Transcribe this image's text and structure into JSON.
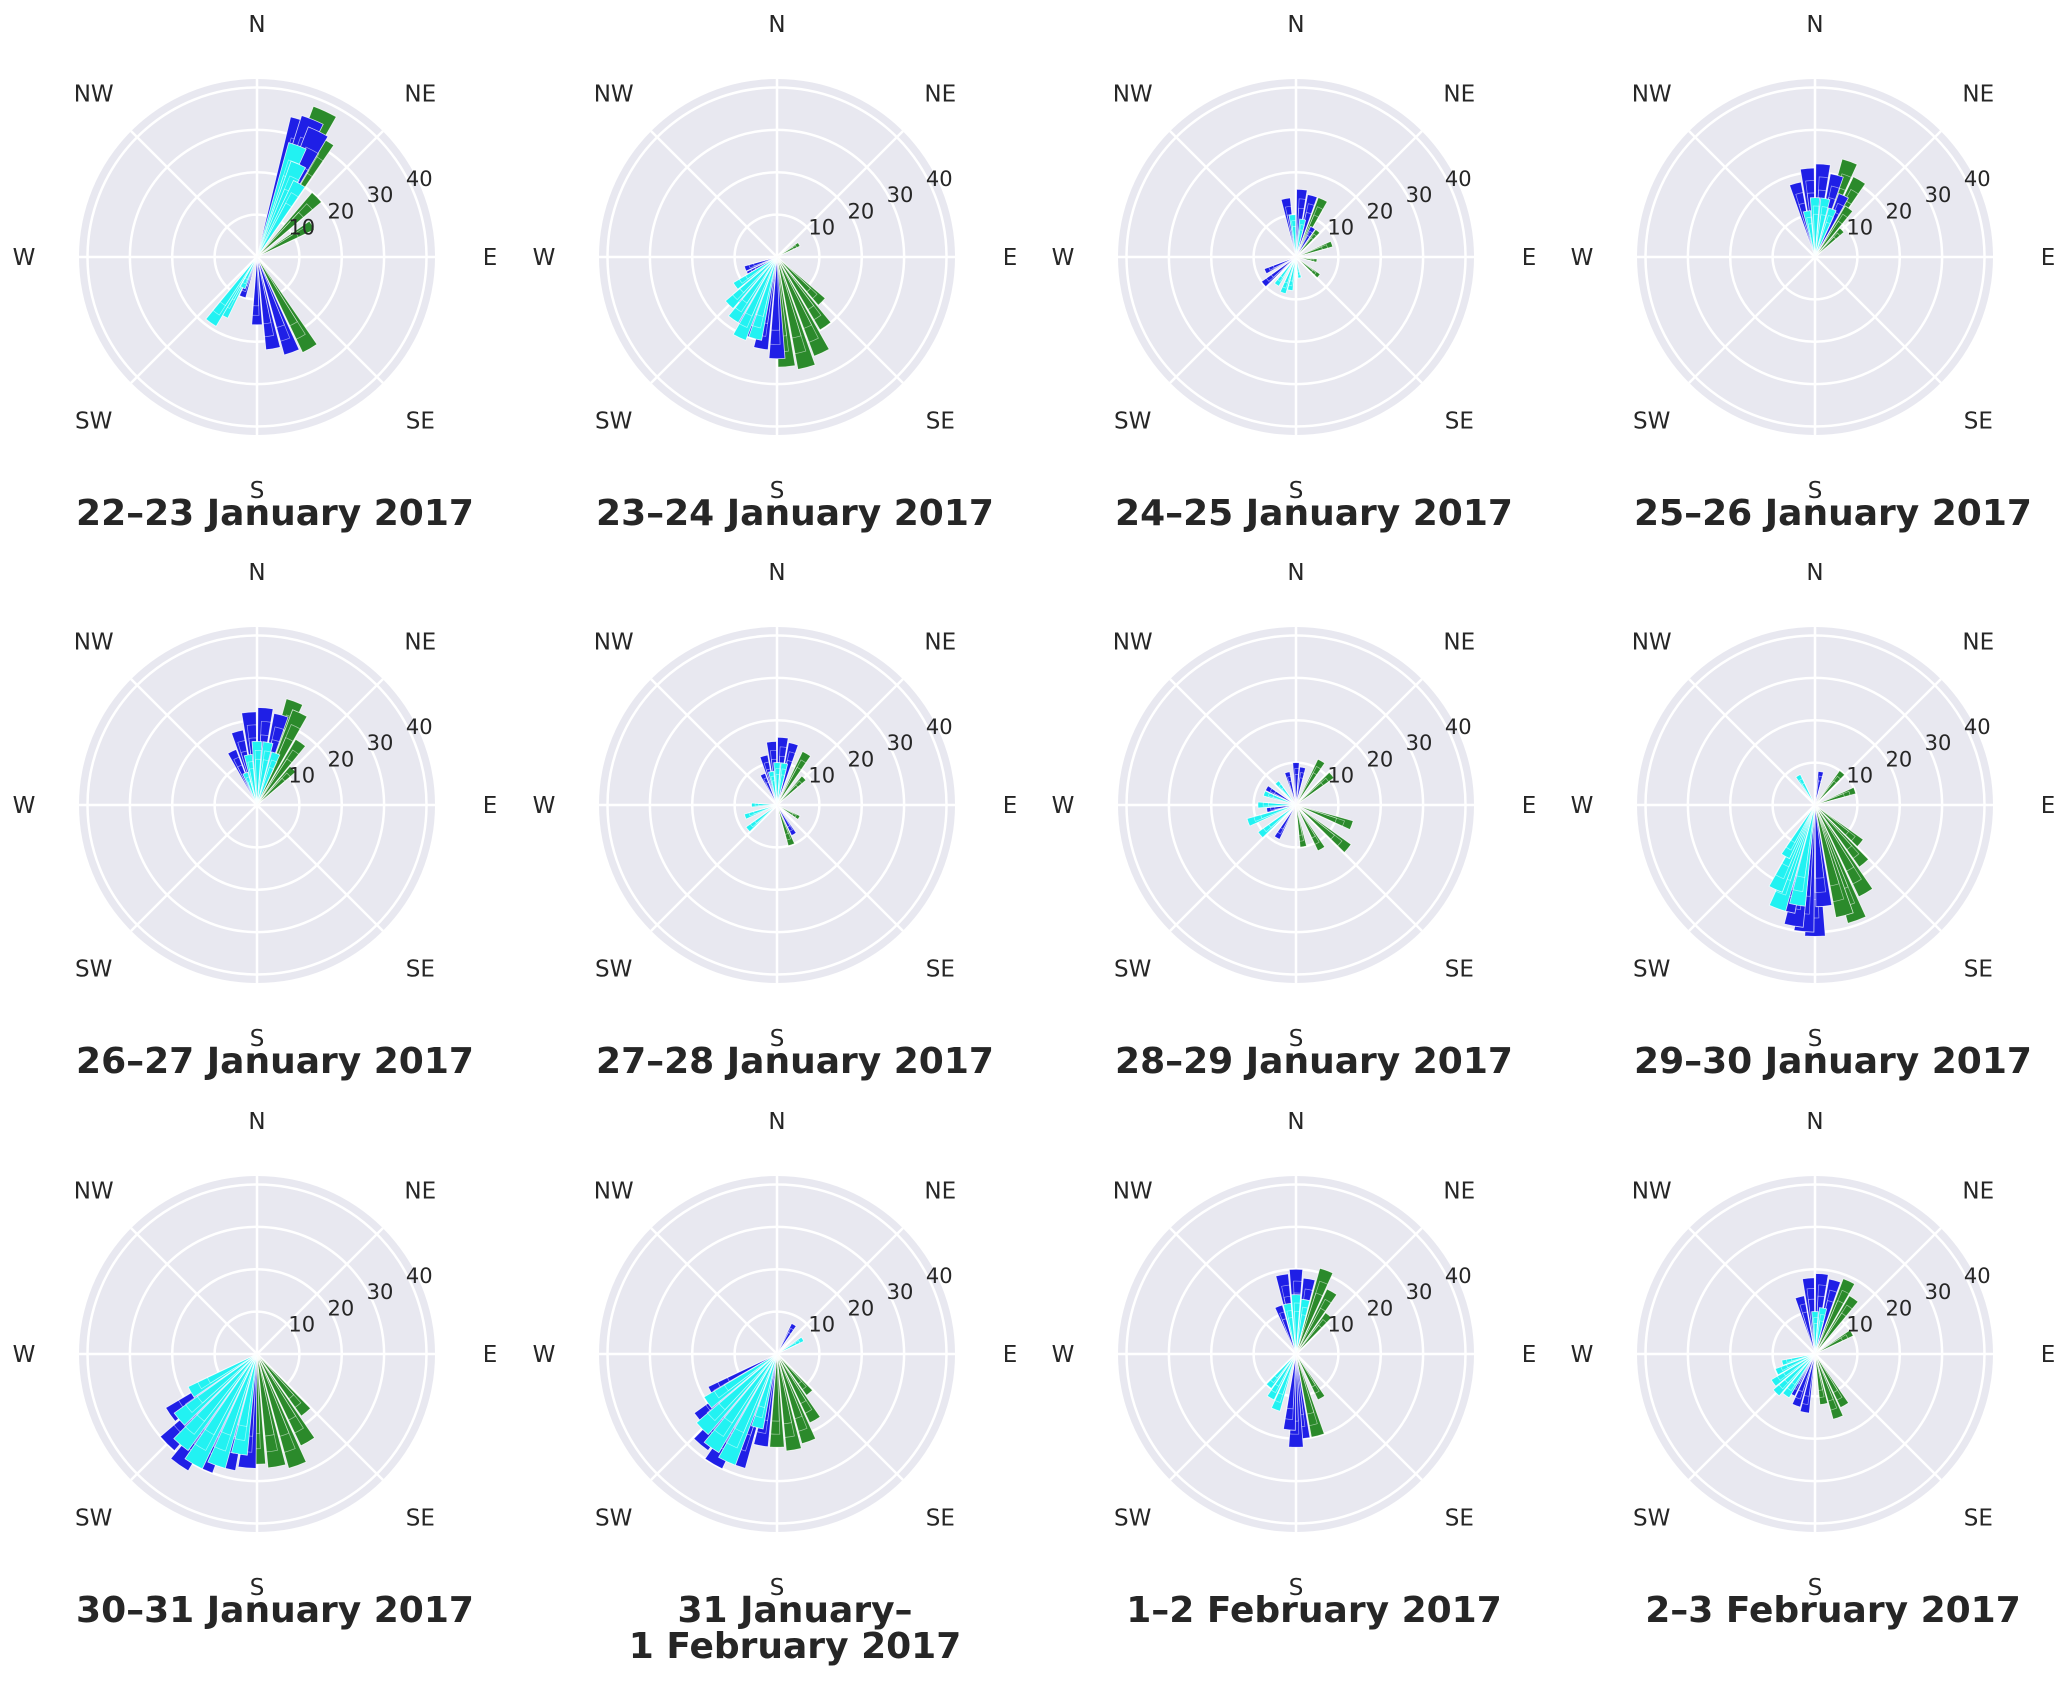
{
  "colors": {
    "background": "#ffffff",
    "panel_bg": "#e8e8f0",
    "grid": "#ffffff",
    "text": "#262626",
    "series_blue": "#1f1fe6",
    "series_cyan": "#22f2f2",
    "series_green": "#2b8a2b"
  },
  "chart_data": {
    "type": "polar-bar",
    "layout": {
      "rows": 3,
      "cols": 4
    },
    "directions": [
      "N",
      "NE",
      "E",
      "SE",
      "S",
      "SW",
      "W",
      "NW"
    ],
    "radial_ticks": [
      10,
      20,
      30,
      40
    ],
    "rlim": [
      0,
      42
    ],
    "grid": true,
    "series_colors": [
      "#1f1fe6",
      "#22f2f2",
      "#2b8a2b"
    ],
    "panels": [
      {
        "title": [
          "22–23 January 2017"
        ],
        "bars": {
          "blue": [
            [
              18,
              34
            ],
            [
              22,
              35
            ],
            [
              26,
              33
            ],
            [
              160,
              24
            ],
            [
              170,
              22
            ],
            [
              180,
              16
            ],
            [
              200,
              10
            ],
            [
              210,
              12
            ]
          ],
          "cyan": [
            [
              20,
              28
            ],
            [
              24,
              24
            ],
            [
              30,
              20
            ],
            [
              210,
              16
            ],
            [
              215,
              19
            ],
            [
              205,
              8
            ]
          ],
          "green": [
            [
              25,
              38
            ],
            [
              30,
              32
            ],
            [
              45,
              20
            ],
            [
              60,
              15
            ],
            [
              150,
              25
            ],
            [
              160,
              20
            ]
          ]
        }
      },
      {
        "title": [
          "23–24 January 2017"
        ],
        "bars": {
          "blue": [
            [
              180,
              24
            ],
            [
              190,
              22
            ],
            [
              200,
              20
            ],
            [
              210,
              18
            ],
            [
              220,
              14
            ],
            [
              230,
              10
            ],
            [
              240,
              8
            ],
            [
              250,
              8
            ]
          ],
          "cyan": [
            [
              195,
              20
            ],
            [
              205,
              21
            ],
            [
              215,
              18
            ],
            [
              225,
              16
            ],
            [
              235,
              12
            ]
          ],
          "green": [
            [
              155,
              25
            ],
            [
              165,
              27
            ],
            [
              175,
              26
            ],
            [
              145,
              20
            ],
            [
              135,
              15
            ],
            [
              60,
              6
            ]
          ]
        }
      },
      {
        "title": [
          "24–25 January 2017"
        ],
        "bars": {
          "blue": [
            [
              5,
              16
            ],
            [
              15,
              15
            ],
            [
              -10,
              14
            ],
            [
              30,
              8
            ],
            [
              230,
              10
            ],
            [
              245,
              8
            ],
            [
              200,
              6
            ]
          ],
          "cyan": [
            [
              -5,
              10
            ],
            [
              10,
              9
            ],
            [
              190,
              8
            ],
            [
              200,
              9
            ],
            [
              215,
              8
            ],
            [
              170,
              5
            ]
          ],
          "green": [
            [
              25,
              15
            ],
            [
              40,
              8
            ],
            [
              70,
              9
            ],
            [
              130,
              7
            ],
            [
              100,
              5
            ]
          ]
        }
      },
      {
        "title": [
          "25–26 January 2017"
        ],
        "bars": {
          "blue": [
            [
              -5,
              21
            ],
            [
              5,
              22
            ],
            [
              15,
              20
            ],
            [
              25,
              16
            ],
            [
              -15,
              18
            ]
          ],
          "cyan": [
            [
              0,
              14
            ],
            [
              10,
              14
            ],
            [
              20,
              12
            ],
            [
              -10,
              11
            ]
          ],
          "green": [
            [
              20,
              24
            ],
            [
              30,
              21
            ],
            [
              35,
              14
            ],
            [
              45,
              9
            ]
          ]
        }
      },
      {
        "title": [
          "26–27 January 2017"
        ],
        "bars": {
          "blue": [
            [
              -5,
              22
            ],
            [
              5,
              23
            ],
            [
              15,
              22
            ],
            [
              -15,
              18
            ],
            [
              -25,
              14
            ]
          ],
          "cyan": [
            [
              0,
              15
            ],
            [
              10,
              15
            ],
            [
              20,
              13
            ],
            [
              -10,
              12
            ],
            [
              -20,
              8
            ]
          ],
          "green": [
            [
              20,
              26
            ],
            [
              25,
              24
            ],
            [
              35,
              18
            ],
            [
              45,
              12
            ]
          ]
        }
      },
      {
        "title": [
          "27–28 January 2017"
        ],
        "bars": {
          "blue": [
            [
              -5,
              15
            ],
            [
              5,
              16
            ],
            [
              15,
              15
            ],
            [
              -15,
              12
            ],
            [
              -25,
              8
            ],
            [
              150,
              8
            ]
          ],
          "cyan": [
            [
              0,
              10
            ],
            [
              10,
              10
            ],
            [
              -10,
              8
            ],
            [
              230,
              9
            ],
            [
              250,
              8
            ],
            [
              270,
              6
            ]
          ],
          "green": [
            [
              30,
              14
            ],
            [
              45,
              9
            ],
            [
              160,
              10
            ],
            [
              120,
              6
            ]
          ]
        }
      },
      {
        "title": [
          "28–29 January 2017"
        ],
        "bars": {
          "blue": [
            [
              0,
              10
            ],
            [
              10,
              9
            ],
            [
              -15,
              8
            ],
            [
              210,
              9
            ],
            [
              230,
              8
            ],
            [
              260,
              7
            ],
            [
              300,
              8
            ]
          ],
          "cyan": [
            [
              230,
              11
            ],
            [
              250,
              12
            ],
            [
              270,
              9
            ],
            [
              290,
              8
            ],
            [
              320,
              7
            ]
          ],
          "green": [
            [
              30,
              12
            ],
            [
              50,
              11
            ],
            [
              110,
              14
            ],
            [
              130,
              16
            ],
            [
              150,
              12
            ],
            [
              170,
              10
            ]
          ]
        }
      },
      {
        "title": [
          "29–30 January 2017"
        ],
        "bars": {
          "blue": [
            [
              10,
              8
            ],
            [
              180,
              31
            ],
            [
              185,
              30
            ],
            [
              190,
              29
            ],
            [
              195,
              26
            ],
            [
              175,
              24
            ],
            [
              200,
              20
            ]
          ],
          "cyan": [
            [
              190,
              24
            ],
            [
              200,
              26
            ],
            [
              205,
              22
            ],
            [
              210,
              14
            ],
            [
              330,
              8
            ]
          ],
          "green": [
            [
              160,
              29
            ],
            [
              165,
              27
            ],
            [
              150,
              24
            ],
            [
              140,
              18
            ],
            [
              130,
              14
            ],
            [
              70,
              10
            ],
            [
              40,
              10
            ]
          ]
        }
      },
      {
        "title": [
          "30–31 January 2017"
        ],
        "bars": {
          "blue": [
            [
              205,
              30
            ],
            [
              215,
              32
            ],
            [
              225,
              30
            ],
            [
              235,
              25
            ],
            [
              195,
              28
            ],
            [
              185,
              27
            ]
          ],
          "cyan": [
            [
              200,
              28
            ],
            [
              210,
              30
            ],
            [
              220,
              28
            ],
            [
              230,
              24
            ],
            [
              240,
              18
            ],
            [
              190,
              24
            ]
          ],
          "green": [
            [
              170,
              27
            ],
            [
              160,
              28
            ],
            [
              150,
              24
            ],
            [
              140,
              18
            ],
            [
              180,
              26
            ]
          ]
        }
      },
      {
        "title": [
          "31 January–",
          "1 February 2017"
        ],
        "bars": {
          "blue": [
            [
              200,
              28
            ],
            [
              210,
              30
            ],
            [
              220,
              28
            ],
            [
              230,
              24
            ],
            [
              240,
              18
            ],
            [
              190,
              22
            ],
            [
              30,
              8
            ]
          ],
          "cyan": [
            [
              205,
              28
            ],
            [
              215,
              27
            ],
            [
              225,
              25
            ],
            [
              235,
              20
            ],
            [
              195,
              18
            ],
            [
              60,
              7
            ]
          ],
          "green": [
            [
              180,
              22
            ],
            [
              170,
              23
            ],
            [
              160,
              22
            ],
            [
              150,
              18
            ],
            [
              140,
              12
            ]
          ]
        }
      },
      {
        "title": [
          "1–2 February 2017"
        ],
        "bars": {
          "blue": [
            [
              0,
              20
            ],
            [
              -10,
              19
            ],
            [
              10,
              18
            ],
            [
              -20,
              12
            ],
            [
              175,
              20
            ],
            [
              180,
              22
            ],
            [
              185,
              18
            ]
          ],
          "cyan": [
            [
              10,
              13
            ],
            [
              0,
              14
            ],
            [
              -10,
              12
            ],
            [
              200,
              14
            ],
            [
              210,
              12
            ],
            [
              220,
              10
            ]
          ],
          "green": [
            [
              20,
              21
            ],
            [
              30,
              17
            ],
            [
              40,
              12
            ],
            [
              165,
              20
            ],
            [
              150,
              12
            ]
          ]
        }
      },
      {
        "title": [
          "2–3 February 2017"
        ],
        "bars": {
          "blue": [
            [
              -5,
              18
            ],
            [
              5,
              19
            ],
            [
              15,
              18
            ],
            [
              -15,
              14
            ],
            [
              190,
              14
            ],
            [
              200,
              13
            ],
            [
              210,
              11
            ]
          ],
          "cyan": [
            [
              0,
              10
            ],
            [
              10,
              11
            ],
            [
              215,
              12
            ],
            [
              225,
              13
            ],
            [
              235,
              12
            ],
            [
              245,
              10
            ],
            [
              255,
              8
            ]
          ],
          "green": [
            [
              25,
              19
            ],
            [
              35,
              16
            ],
            [
              60,
              10
            ],
            [
              150,
              14
            ],
            [
              160,
              16
            ],
            [
              170,
              12
            ]
          ]
        }
      }
    ]
  }
}
